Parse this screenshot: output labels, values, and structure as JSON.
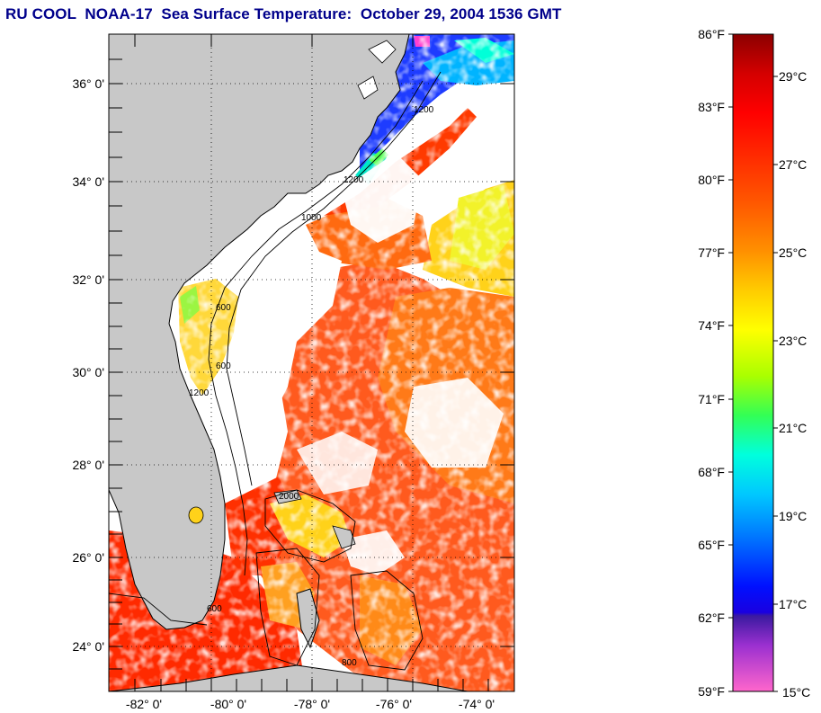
{
  "title": "RU COOL  NOAA-17  Sea Surface Temperature:  October 29, 2004 1536 GMT",
  "map": {
    "lat_ticks": [
      "36° 0'",
      "34° 0'",
      "32° 0'",
      "30° 0'",
      "28° 0'",
      "26° 0'",
      "24° 0'"
    ],
    "lon_ticks": [
      "-82° 0'",
      "-80° 0'",
      "-78° 0'",
      "-76° 0'",
      "-74° 0'"
    ],
    "isobath_labels": [
      "1200",
      "1000",
      "600",
      "1200",
      "600",
      "1200",
      "2000",
      "600",
      "800"
    ],
    "colors": {
      "land": "#c8c8c8",
      "no_data": "#ffffff",
      "coast": "#000000"
    }
  },
  "colorbar": {
    "fahrenheit_labels": [
      "86°F",
      "83°F",
      "80°F",
      "77°F",
      "74°F",
      "71°F",
      "68°F",
      "65°F",
      "62°F",
      "59°F"
    ],
    "celsius_labels": [
      "29°C",
      "27°C",
      "25°C",
      "23°C",
      "21°C",
      "19°C",
      "17°C",
      "15°C"
    ],
    "gradient_colors": [
      "#8b0000",
      "#ff0000",
      "#ff6a00",
      "#ffa500",
      "#ffd400",
      "#ffff00",
      "#9aff00",
      "#33ff66",
      "#00ffdd",
      "#00bfff",
      "#0060ff",
      "#0000ff",
      "#4b0082",
      "#9933cc",
      "#ff33cc",
      "#ff66cc"
    ]
  }
}
